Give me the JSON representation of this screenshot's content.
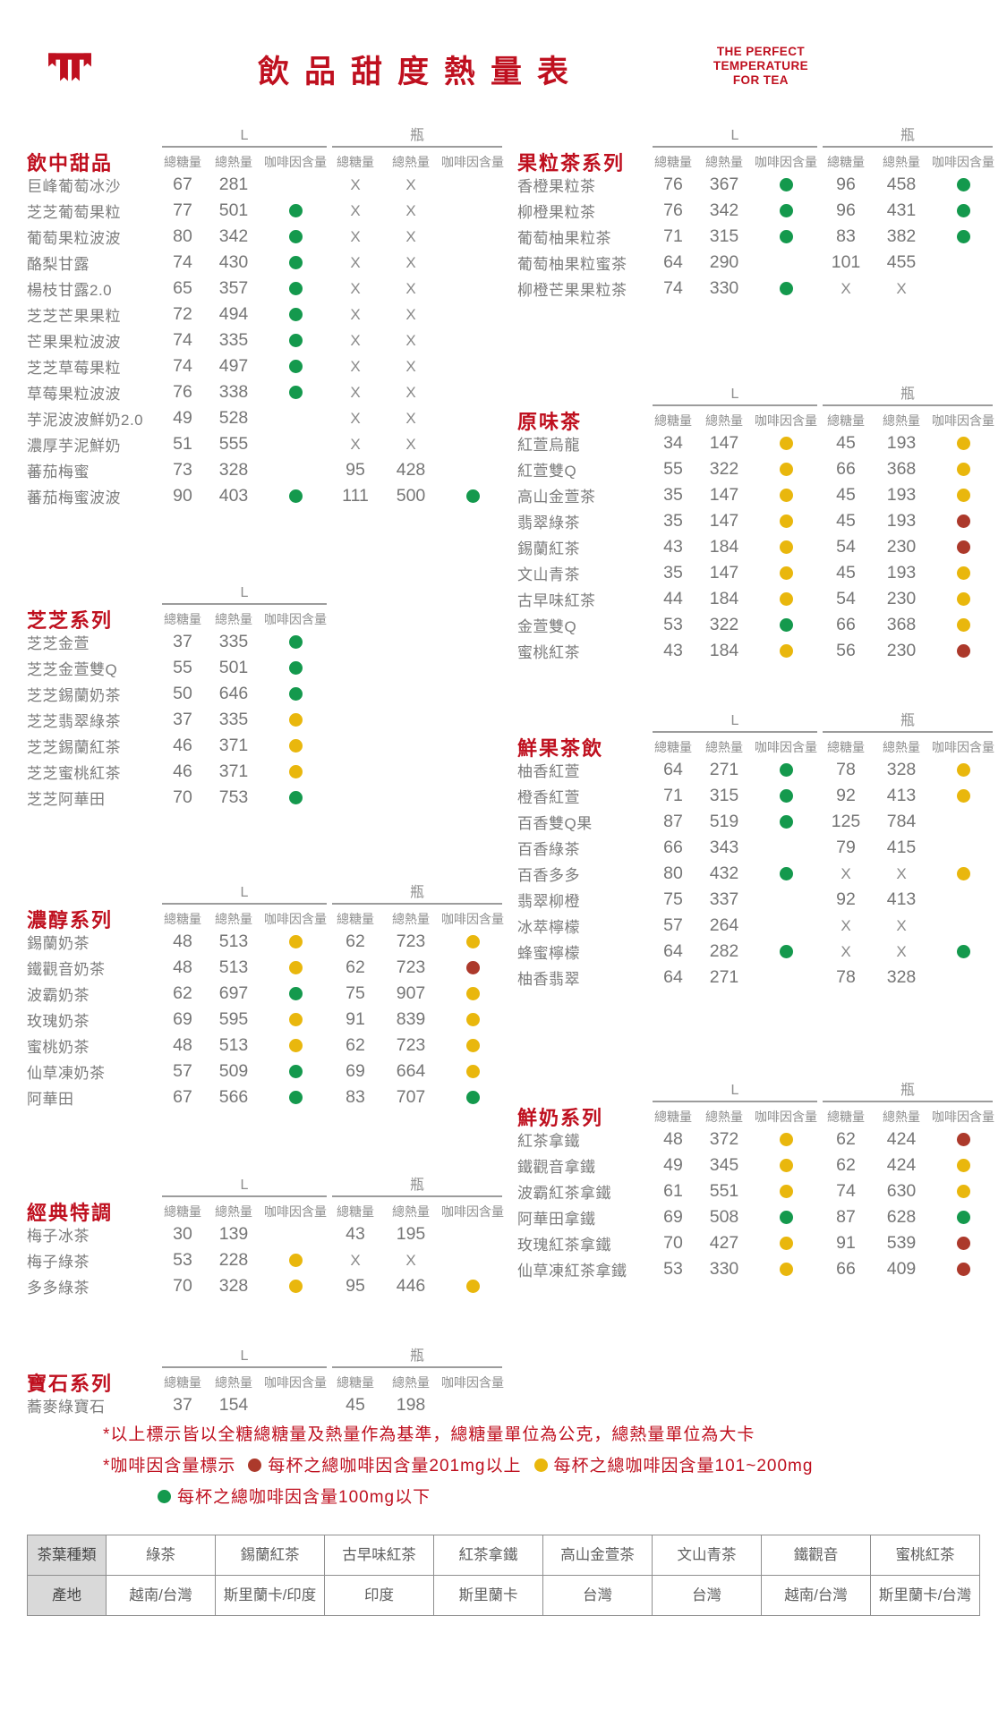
{
  "header": {
    "title": "飲品甜度熱量表",
    "slogan_lines": [
      "THE PERFECT",
      "TEMPERATURE",
      "FOR TEA"
    ],
    "logo_icon": "brand-logo"
  },
  "table_headers": {
    "sugar": "總糖量",
    "calories": "總熱量",
    "caffeine": "咖啡因含量",
    "size_l": "L",
    "size_bottle": "瓶"
  },
  "dot_colors": {
    "g": "#14994d",
    "y": "#e9b70d",
    "r": "#ac392b"
  },
  "sections": [
    {
      "id": "yinzhong",
      "column": "left",
      "title": "飲中甜品",
      "has_bottle": true,
      "rows": [
        {
          "name": "巨峰葡萄冰沙",
          "l": [
            "67",
            "281",
            null
          ],
          "b": [
            "X",
            "X",
            null
          ]
        },
        {
          "name": "芝芝葡萄果粒",
          "l": [
            "77",
            "501",
            "g"
          ],
          "b": [
            "X",
            "X",
            null
          ]
        },
        {
          "name": "葡萄果粒波波",
          "l": [
            "80",
            "342",
            "g"
          ],
          "b": [
            "X",
            "X",
            null
          ]
        },
        {
          "name": "酪梨甘露",
          "l": [
            "74",
            "430",
            "g"
          ],
          "b": [
            "X",
            "X",
            null
          ]
        },
        {
          "name": "楊枝甘露2.0",
          "l": [
            "65",
            "357",
            "g"
          ],
          "b": [
            "X",
            "X",
            null
          ]
        },
        {
          "name": "芝芝芒果果粒",
          "l": [
            "72",
            "494",
            "g"
          ],
          "b": [
            "X",
            "X",
            null
          ]
        },
        {
          "name": "芒果果粒波波",
          "l": [
            "74",
            "335",
            "g"
          ],
          "b": [
            "X",
            "X",
            null
          ]
        },
        {
          "name": "芝芝草莓果粒",
          "l": [
            "74",
            "497",
            "g"
          ],
          "b": [
            "X",
            "X",
            null
          ]
        },
        {
          "name": "草莓果粒波波",
          "l": [
            "76",
            "338",
            "g"
          ],
          "b": [
            "X",
            "X",
            null
          ]
        },
        {
          "name": "芋泥波波鮮奶2.0",
          "l": [
            "49",
            "528",
            null
          ],
          "b": [
            "X",
            "X",
            null
          ]
        },
        {
          "name": "濃厚芋泥鮮奶",
          "l": [
            "51",
            "555",
            null
          ],
          "b": [
            "X",
            "X",
            null
          ]
        },
        {
          "name": "蕃茄梅蜜",
          "l": [
            "73",
            "328",
            null
          ],
          "b": [
            "95",
            "428",
            null
          ]
        },
        {
          "name": "蕃茄梅蜜波波",
          "l": [
            "90",
            "403",
            "g"
          ],
          "b": [
            "111",
            "500",
            "g"
          ]
        }
      ]
    },
    {
      "id": "zhizhi",
      "column": "left",
      "title": "芝芝系列",
      "has_bottle": false,
      "rows": [
        {
          "name": "芝芝金萱",
          "l": [
            "37",
            "335",
            "g"
          ]
        },
        {
          "name": "芝芝金萱雙Q",
          "l": [
            "55",
            "501",
            "g"
          ]
        },
        {
          "name": "芝芝錫蘭奶茶",
          "l": [
            "50",
            "646",
            "g"
          ]
        },
        {
          "name": "芝芝翡翠綠茶",
          "l": [
            "37",
            "335",
            "y"
          ]
        },
        {
          "name": "芝芝錫蘭紅茶",
          "l": [
            "46",
            "371",
            "y"
          ]
        },
        {
          "name": "芝芝蜜桃紅茶",
          "l": [
            "46",
            "371",
            "y"
          ]
        },
        {
          "name": "芝芝阿華田",
          "l": [
            "70",
            "753",
            "g"
          ]
        }
      ]
    },
    {
      "id": "nongchun",
      "column": "left",
      "title": "濃醇系列",
      "has_bottle": true,
      "rows": [
        {
          "name": "錫蘭奶茶",
          "l": [
            "48",
            "513",
            "y"
          ],
          "b": [
            "62",
            "723",
            "y"
          ]
        },
        {
          "name": "鐵觀音奶茶",
          "l": [
            "48",
            "513",
            "y"
          ],
          "b": [
            "62",
            "723",
            "r"
          ]
        },
        {
          "name": "波霸奶茶",
          "l": [
            "62",
            "697",
            "g"
          ],
          "b": [
            "75",
            "907",
            "y"
          ]
        },
        {
          "name": "玫瑰奶茶",
          "l": [
            "69",
            "595",
            "y"
          ],
          "b": [
            "91",
            "839",
            "y"
          ]
        },
        {
          "name": "蜜桃奶茶",
          "l": [
            "48",
            "513",
            "y"
          ],
          "b": [
            "62",
            "723",
            "y"
          ]
        },
        {
          "name": "仙草凍奶茶",
          "l": [
            "57",
            "509",
            "g"
          ],
          "b": [
            "69",
            "664",
            "y"
          ]
        },
        {
          "name": "阿華田",
          "l": [
            "67",
            "566",
            "g"
          ],
          "b": [
            "83",
            "707",
            "g"
          ]
        }
      ]
    },
    {
      "id": "jingdian",
      "column": "left",
      "title": "經典特調",
      "has_bottle": true,
      "rows": [
        {
          "name": "梅子冰茶",
          "l": [
            "30",
            "139",
            null
          ],
          "b": [
            "43",
            "195",
            null
          ]
        },
        {
          "name": "梅子綠茶",
          "l": [
            "53",
            "228",
            "y"
          ],
          "b": [
            "X",
            "X",
            null
          ]
        },
        {
          "name": "多多綠茶",
          "l": [
            "70",
            "328",
            "y"
          ],
          "b": [
            "95",
            "446",
            "y"
          ]
        }
      ]
    },
    {
      "id": "baoshi",
      "column": "left",
      "title": "寶石系列",
      "has_bottle": true,
      "rows": [
        {
          "name": "蕎麥綠寶石",
          "l": [
            "37",
            "154",
            null
          ],
          "b": [
            "45",
            "198",
            null
          ]
        }
      ]
    },
    {
      "id": "guoli",
      "column": "right",
      "title": "果粒茶系列",
      "has_bottle": true,
      "rows": [
        {
          "name": "香橙果粒茶",
          "l": [
            "76",
            "367",
            "g"
          ],
          "b": [
            "96",
            "458",
            "g"
          ]
        },
        {
          "name": "柳橙果粒茶",
          "l": [
            "76",
            "342",
            "g"
          ],
          "b": [
            "96",
            "431",
            "g"
          ]
        },
        {
          "name": "葡萄柚果粒茶",
          "l": [
            "71",
            "315",
            "g"
          ],
          "b": [
            "83",
            "382",
            "g"
          ]
        },
        {
          "name": "葡萄柚果粒蜜茶",
          "l": [
            "64",
            "290",
            null
          ],
          "b": [
            "101",
            "455",
            null
          ]
        },
        {
          "name": "柳橙芒果果粒茶",
          "l": [
            "74",
            "330",
            "g"
          ],
          "b": [
            "X",
            "X",
            null
          ]
        }
      ]
    },
    {
      "id": "yuanwei",
      "column": "right",
      "title": "原味茶",
      "has_bottle": true,
      "rows": [
        {
          "name": "紅萱烏龍",
          "l": [
            "34",
            "147",
            "y"
          ],
          "b": [
            "45",
            "193",
            "y"
          ]
        },
        {
          "name": "紅萱雙Q",
          "l": [
            "55",
            "322",
            "y"
          ],
          "b": [
            "66",
            "368",
            "y"
          ]
        },
        {
          "name": "高山金萱茶",
          "l": [
            "35",
            "147",
            "y"
          ],
          "b": [
            "45",
            "193",
            "y"
          ]
        },
        {
          "name": "翡翠綠茶",
          "l": [
            "35",
            "147",
            "y"
          ],
          "b": [
            "45",
            "193",
            "r"
          ]
        },
        {
          "name": "錫蘭紅茶",
          "l": [
            "43",
            "184",
            "y"
          ],
          "b": [
            "54",
            "230",
            "r"
          ]
        },
        {
          "name": "文山青茶",
          "l": [
            "35",
            "147",
            "y"
          ],
          "b": [
            "45",
            "193",
            "y"
          ]
        },
        {
          "name": "古早味紅茶",
          "l": [
            "44",
            "184",
            "y"
          ],
          "b": [
            "54",
            "230",
            "y"
          ]
        },
        {
          "name": "金萱雙Q",
          "l": [
            "53",
            "322",
            "g"
          ],
          "b": [
            "66",
            "368",
            "y"
          ]
        },
        {
          "name": "蜜桃紅茶",
          "l": [
            "43",
            "184",
            "y"
          ],
          "b": [
            "56",
            "230",
            "r"
          ]
        }
      ]
    },
    {
      "id": "xianguo",
      "column": "right",
      "title": "鮮果茶飲",
      "has_bottle": true,
      "rows": [
        {
          "name": "柚香紅萱",
          "l": [
            "64",
            "271",
            "g"
          ],
          "b": [
            "78",
            "328",
            "y"
          ]
        },
        {
          "name": "橙香紅萱",
          "l": [
            "71",
            "315",
            "g"
          ],
          "b": [
            "92",
            "413",
            "y"
          ]
        },
        {
          "name": "百香雙Q果",
          "l": [
            "87",
            "519",
            "g"
          ],
          "b": [
            "125",
            "784",
            null
          ]
        },
        {
          "name": "百香綠茶",
          "l": [
            "66",
            "343",
            null
          ],
          "b": [
            "79",
            "415",
            null
          ]
        },
        {
          "name": "百香多多",
          "l": [
            "80",
            "432",
            "g"
          ],
          "b": [
            "X",
            "X",
            "y"
          ]
        },
        {
          "name": "翡翠柳橙",
          "l": [
            "75",
            "337",
            null
          ],
          "b": [
            "92",
            "413",
            null
          ]
        },
        {
          "name": "冰萃檸檬",
          "l": [
            "57",
            "264",
            null
          ],
          "b": [
            "X",
            "X",
            null
          ]
        },
        {
          "name": "蜂蜜檸檬",
          "l": [
            "64",
            "282",
            "g"
          ],
          "b": [
            "X",
            "X",
            "g"
          ]
        },
        {
          "name": "柚香翡翠",
          "l": [
            "64",
            "271",
            null
          ],
          "b": [
            "78",
            "328",
            null
          ]
        }
      ]
    },
    {
      "id": "xiannai",
      "column": "right",
      "title": "鮮奶系列",
      "has_bottle": true,
      "rows": [
        {
          "name": "紅茶拿鐵",
          "l": [
            "48",
            "372",
            "y"
          ],
          "b": [
            "62",
            "424",
            "r"
          ]
        },
        {
          "name": "鐵觀音拿鐵",
          "l": [
            "49",
            "345",
            "y"
          ],
          "b": [
            "62",
            "424",
            "y"
          ]
        },
        {
          "name": "波霸紅茶拿鐵",
          "l": [
            "61",
            "551",
            "y"
          ],
          "b": [
            "74",
            "630",
            "y"
          ]
        },
        {
          "name": "阿華田拿鐵",
          "l": [
            "69",
            "508",
            "g"
          ],
          "b": [
            "87",
            "628",
            "g"
          ]
        },
        {
          "name": "玫瑰紅茶拿鐵",
          "l": [
            "70",
            "427",
            "y"
          ],
          "b": [
            "91",
            "539",
            "r"
          ]
        },
        {
          "name": "仙草凍紅茶拿鐵",
          "l": [
            "53",
            "330",
            "y"
          ],
          "b": [
            "66",
            "409",
            "r"
          ]
        }
      ]
    }
  ],
  "footer": {
    "note": "*以上標示皆以全糖總糖量及熱量作為基準，總糖量單位為公克，總熱量單位為大卡",
    "legend_title": "*咖啡因含量標示",
    "legend_high": "每杯之總咖啡因含量201mg以上",
    "legend_mid": "每杯之總咖啡因含量101~200mg",
    "legend_low": "每杯之總咖啡因含量100mg以下",
    "tea_table": {
      "row1_header": "茶葉種類",
      "row2_header": "產地",
      "types": [
        "綠茶",
        "錫蘭紅茶",
        "古早味紅茶",
        "紅茶拿鐵",
        "高山金萱茶",
        "文山青茶",
        "鐵觀音",
        "蜜桃紅茶"
      ],
      "origins": [
        "越南/台灣",
        "斯里蘭卡/印度",
        "印度",
        "斯里蘭卡",
        "台灣",
        "台灣",
        "越南/台灣",
        "斯里蘭卡/台灣"
      ]
    }
  }
}
